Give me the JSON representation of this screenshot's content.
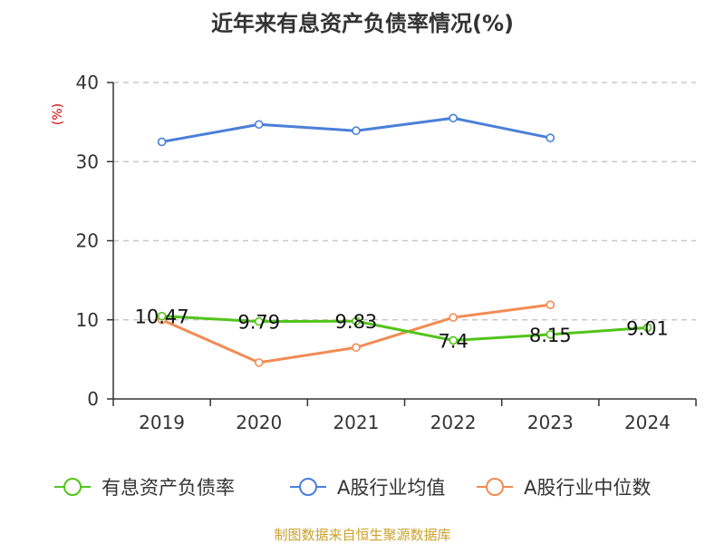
{
  "chart_data": {
    "type": "line",
    "title": "近年来有息资产负债率情况(%)",
    "ylabel": "(%)",
    "categories": [
      "2019",
      "2020",
      "2021",
      "2022",
      "2023",
      "2024"
    ],
    "ylim": [
      0,
      40
    ],
    "yticks": [
      0,
      10,
      20,
      30,
      40
    ],
    "grid": true,
    "legend_position": "bottom",
    "series": [
      {
        "name": "有息资产负债率",
        "color": "#52c41a",
        "values": [
          10.47,
          9.79,
          9.83,
          7.4,
          8.15,
          9.01
        ],
        "labels": [
          "10.47",
          "9.79",
          "9.83",
          "7.4",
          "8.15",
          "9.01"
        ]
      },
      {
        "name": "A股行业均值",
        "color": "#4a7fd9",
        "values": [
          32.5,
          34.7,
          33.9,
          35.5,
          33.0,
          null
        ]
      },
      {
        "name": "A股行业中位数",
        "color": "#f28b54",
        "values": [
          10.0,
          4.6,
          6.5,
          10.3,
          11.9,
          null
        ]
      }
    ]
  },
  "footer": "制图数据来自恒生聚源数据库"
}
